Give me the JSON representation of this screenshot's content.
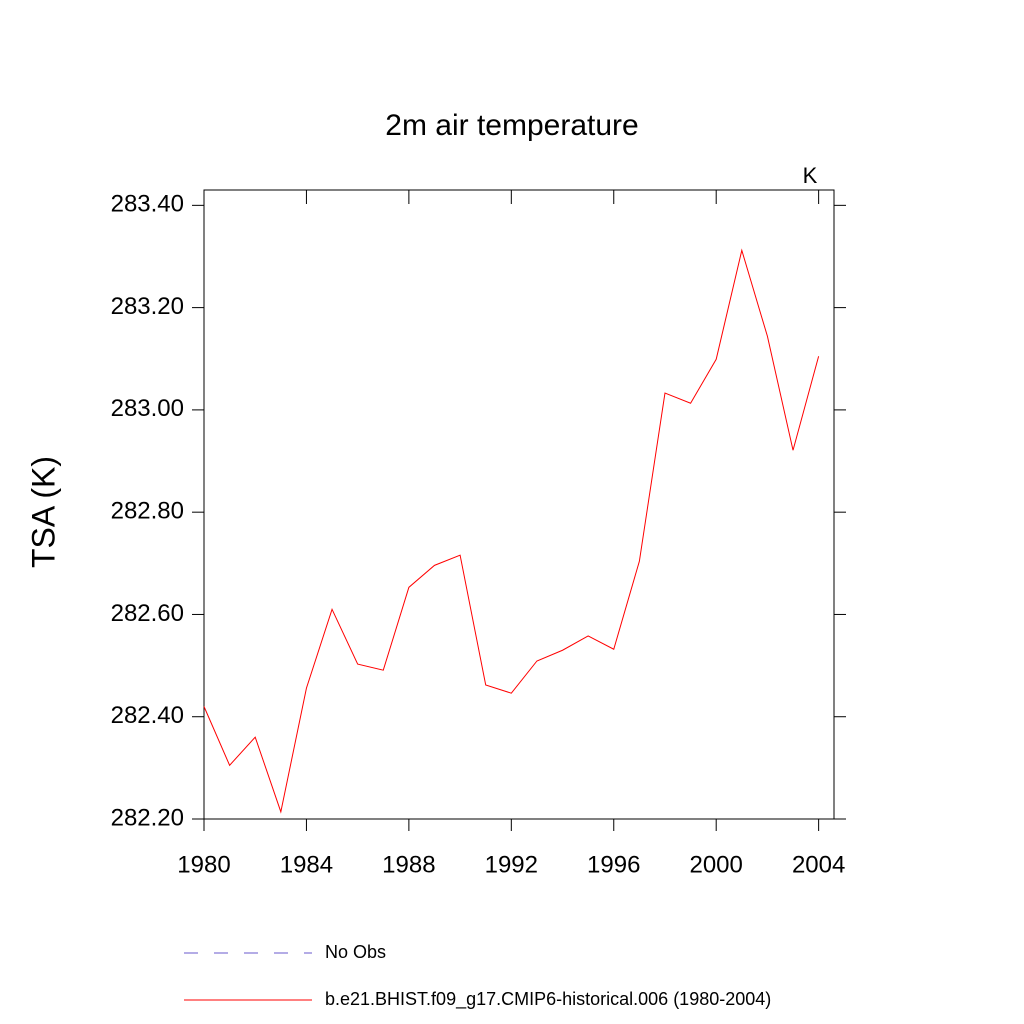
{
  "chart_data": {
    "type": "line",
    "title": "2m air temperature",
    "units_label": "K",
    "y_label": "TSA  (K)",
    "x": [
      1980,
      1981,
      1982,
      1983,
      1984,
      1985,
      1986,
      1987,
      1988,
      1989,
      1990,
      1991,
      1992,
      1993,
      1994,
      1995,
      1996,
      1997,
      1998,
      1999,
      2000,
      2001,
      2002,
      2003,
      2004
    ],
    "series": [
      {
        "name": "No Obs",
        "color": "#6a5acd",
        "dash": true,
        "values": [
          null,
          null,
          null,
          null,
          null,
          null,
          null,
          null,
          null,
          null,
          null,
          null,
          null,
          null,
          null,
          null,
          null,
          null,
          null,
          null,
          null,
          null,
          null,
          null,
          null
        ]
      },
      {
        "name": "b.e21.BHIST.f09_g17.CMIP6-historical.006 (1980-2004)",
        "color": "#ff0000",
        "dash": false,
        "values": [
          282.42,
          282.305,
          282.36,
          282.214,
          282.456,
          282.61,
          282.503,
          282.491,
          282.653,
          282.696,
          282.716,
          282.462,
          282.446,
          282.509,
          282.53,
          282.558,
          282.532,
          282.704,
          283.033,
          283.013,
          283.099,
          283.312,
          283.144,
          282.921,
          283.105
        ]
      }
    ],
    "xlim": [
      1980,
      2004.6
    ],
    "ylim": [
      282.2,
      283.43
    ],
    "xticks": [
      1980,
      1984,
      1988,
      1992,
      1996,
      2000,
      2004
    ],
    "yticks": [
      {
        "value": 282.2,
        "label": "282.20"
      },
      {
        "value": 282.4,
        "label": "282.40"
      },
      {
        "value": 282.6,
        "label": "282.60"
      },
      {
        "value": 282.8,
        "label": "282.80"
      },
      {
        "value": 283.0,
        "label": "283.00"
      },
      {
        "value": 283.2,
        "label": "283.20"
      },
      {
        "value": 283.4,
        "label": "283.40"
      }
    ],
    "grid": false
  }
}
